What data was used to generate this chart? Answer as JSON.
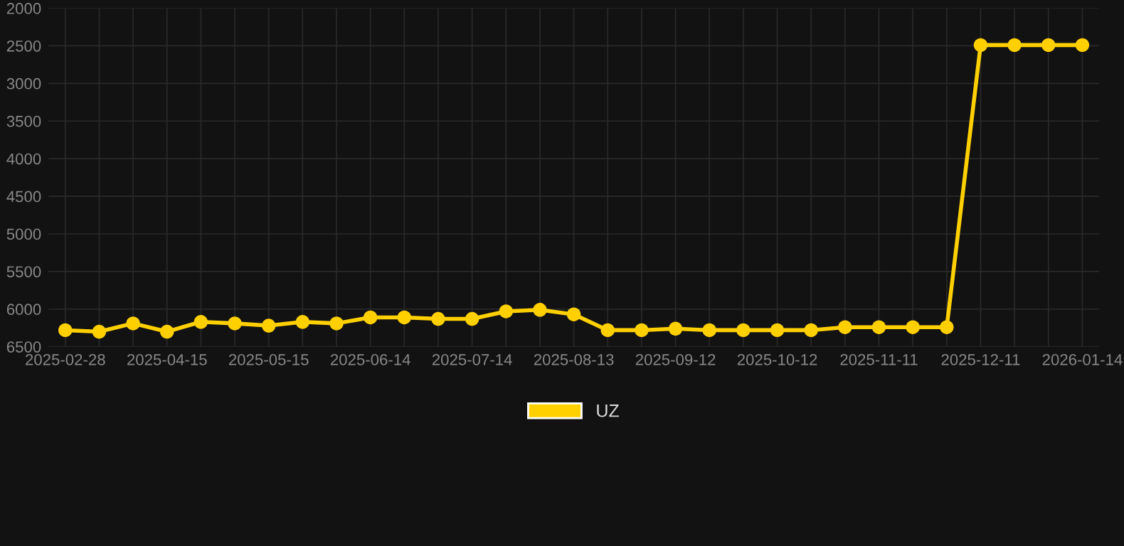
{
  "chart_data": {
    "type": "line",
    "categories": [
      "2025-02-28",
      null,
      null,
      "2025-04-15",
      null,
      null,
      "2025-05-15",
      null,
      null,
      "2025-06-14",
      null,
      null,
      "2025-07-14",
      null,
      null,
      "2025-08-13",
      null,
      null,
      "2025-09-12",
      null,
      null,
      "2025-10-12",
      null,
      null,
      "2025-11-11",
      null,
      null,
      "2025-12-11",
      null,
      null,
      "2026-01-14"
    ],
    "series": [
      {
        "name": "UZ",
        "color": "#ffd000",
        "values": [
          6280,
          6300,
          6190,
          6300,
          6170,
          6190,
          6220,
          6170,
          6190,
          6110,
          6110,
          6130,
          6130,
          6030,
          6010,
          6070,
          6280,
          6280,
          6260,
          6280,
          6280,
          6280,
          6280,
          6240,
          6240,
          6240,
          6240,
          2490,
          2490,
          2490,
          2490
        ]
      }
    ],
    "ylim": [
      6500,
      2000
    ],
    "yticks": [
      2000,
      2500,
      3000,
      3500,
      4000,
      4500,
      5000,
      5500,
      6000,
      6500
    ],
    "grid": true,
    "legend": "bottom",
    "marker": "circle",
    "line_style": "solid"
  }
}
